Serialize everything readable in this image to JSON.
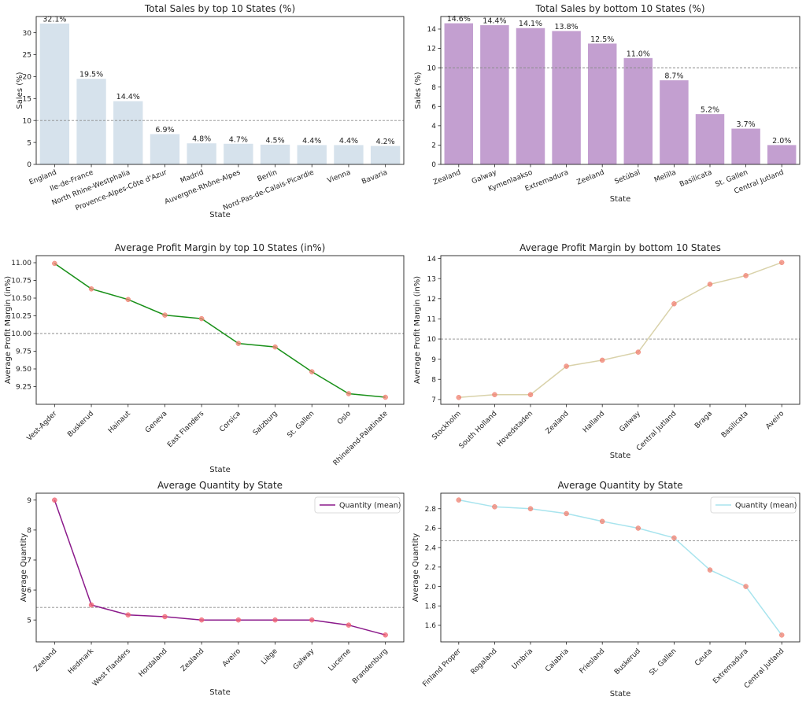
{
  "chart_data": [
    {
      "type": "bar",
      "title": "Total Sales by top 10 States (%)",
      "xlabel": "State",
      "ylabel": "Sales (%)",
      "categories": [
        "England",
        "Ile-de-France",
        "North Rhine-Westphalia",
        "Provence-Alpes-Côte d'Azur",
        "Madrid",
        "Auvergne-Rhône-Alpes",
        "Berlin",
        "Nord-Pas-de-Calais-Picardie",
        "Vienna",
        "Bavaria"
      ],
      "values": [
        32.1,
        19.5,
        14.4,
        6.9,
        4.8,
        4.7,
        4.5,
        4.4,
        4.4,
        4.2
      ],
      "value_labels": [
        "32.1%",
        "19.5%",
        "14.4%",
        "6.9%",
        "4.8%",
        "4.7%",
        "4.5%",
        "4.4%",
        "4.4%",
        "4.2%"
      ],
      "ylim": [
        0,
        33.7
      ],
      "yticks": [
        0,
        5,
        10,
        15,
        20,
        25,
        30
      ],
      "reference_line": 10,
      "color": "#d6e2ec",
      "grid": false
    },
    {
      "type": "bar",
      "title": "Total Sales by bottom 10 States (%)",
      "xlabel": "State",
      "ylabel": "Sales (%)",
      "categories": [
        "Zealand",
        "Galway",
        "Kymenlaakso",
        "Extremadura",
        "Zeeland",
        "Setúbal",
        "Melilla",
        "Basilicata",
        "St. Gallen",
        "Central Jutland"
      ],
      "values": [
        14.6,
        14.4,
        14.1,
        13.8,
        12.5,
        11.0,
        8.7,
        5.2,
        3.7,
        2.0
      ],
      "value_labels": [
        "14.6%",
        "14.4%",
        "14.1%",
        "13.8%",
        "12.5%",
        "11.0%",
        "8.7%",
        "5.2%",
        "3.7%",
        "2.0%"
      ],
      "ylim": [
        0,
        15.3
      ],
      "yticks": [
        0,
        2,
        4,
        6,
        8,
        10,
        12,
        14
      ],
      "reference_line": 10,
      "color": "#c39fd0",
      "grid": false
    },
    {
      "type": "line",
      "title": "Average Profit Margin by top 10 States (in%)",
      "xlabel": "State",
      "ylabel": "Average Profit Margin (in%)",
      "categories": [
        "Vest-Agder",
        "Buskerud",
        "Hainaut",
        "Geneva",
        "East Flanders",
        "Corsica",
        "Salzburg",
        "St. Gallen",
        "Oslo",
        "Rhineland-Palatinate"
      ],
      "values": [
        10.99,
        10.63,
        10.48,
        10.26,
        10.21,
        9.86,
        9.81,
        9.46,
        9.15,
        9.1
      ],
      "ylim": [
        9.0,
        11.1
      ],
      "yticks": [
        9.25,
        9.5,
        9.75,
        10.0,
        10.25,
        10.5,
        10.75,
        11.0
      ],
      "ytick_labels": [
        "9.25",
        "9.50",
        "9.75",
        "10.00",
        "10.25",
        "10.50",
        "10.75",
        "11.00"
      ],
      "reference_line": 10.0,
      "line_color": "#199019",
      "marker_color": "#f08070",
      "grid": false
    },
    {
      "type": "line",
      "title": "Average Profit Margin by bottom 10 States",
      "xlabel": "State",
      "ylabel": "Average Profit Margin (in%)",
      "categories": [
        "Stockholm",
        "South Holland",
        "Hovedstaden",
        "Zealand",
        "Halland",
        "Galway",
        "Central Jutland",
        "Braga",
        "Basilicata",
        "Aveiro"
      ],
      "values": [
        7.1,
        7.24,
        7.24,
        8.65,
        8.95,
        9.35,
        11.75,
        12.72,
        13.15,
        13.8
      ],
      "ylim": [
        6.76,
        14.14
      ],
      "yticks": [
        7,
        8,
        9,
        10,
        11,
        12,
        13,
        14
      ],
      "reference_line": 10,
      "line_color": "#d9d2aa",
      "marker_color": "#f08070",
      "grid": false
    },
    {
      "type": "line",
      "title": "Average Quantity by State",
      "xlabel": "State",
      "ylabel": "Average Quantity",
      "categories": [
        "Zeeland",
        "Hedmark",
        "West Flanders",
        "Hordaland",
        "Zealand",
        "Aveiro",
        "Liège",
        "Galway",
        "Lucerne",
        "Brandenburg"
      ],
      "values": [
        9.0,
        5.5,
        5.17,
        5.11,
        5.0,
        5.0,
        5.0,
        5.0,
        4.83,
        4.5
      ],
      "ylim": [
        4.27,
        9.23
      ],
      "yticks": [
        5,
        6,
        7,
        8,
        9
      ],
      "reference_line": 5.42,
      "line_color": "#8b1a8b",
      "marker_color": "#f06070",
      "legend": "Quantity (mean)",
      "legend_position": "top-right",
      "grid": false
    },
    {
      "type": "line",
      "title": "Average Quantity by State",
      "xlabel": "State",
      "ylabel": "Average Quantity",
      "categories": [
        "Finland Proper",
        "Rogaland",
        "Umbria",
        "Calabria",
        "Friesland",
        "Buskerud",
        "St. Gallen",
        "Ceuta",
        "Extremadura",
        "Central Jutland"
      ],
      "values": [
        2.89,
        2.82,
        2.8,
        2.75,
        2.67,
        2.6,
        2.5,
        2.17,
        2.0,
        1.5
      ],
      "ylim": [
        1.43,
        2.96
      ],
      "yticks": [
        1.6,
        1.8,
        2.0,
        2.2,
        2.4,
        2.6,
        2.8
      ],
      "ytick_labels": [
        "1.6",
        "1.8",
        "2.0",
        "2.2",
        "2.4",
        "2.6",
        "2.8"
      ],
      "reference_line": 2.47,
      "line_color": "#a8e4ee",
      "marker_color": "#f08070",
      "legend": "Quantity (mean)",
      "legend_position": "top-right",
      "grid": false
    }
  ]
}
